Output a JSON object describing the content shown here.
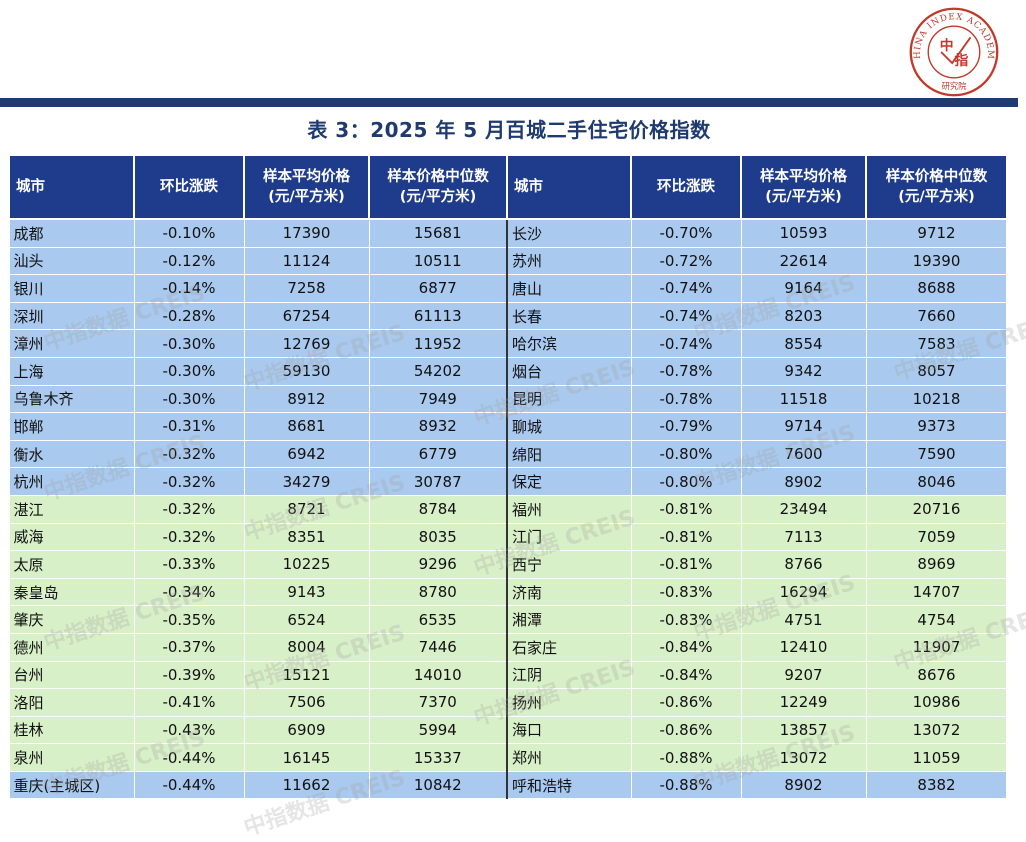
{
  "seal": {
    "ring_text": "CHINA INDEX ACADEMY",
    "center_chars": [
      "中",
      "指"
    ],
    "bottom_text": "研究院",
    "color": "#c0392b"
  },
  "title": "表 3：2025 年 5 月百城二手住宅价格指数",
  "columns": {
    "city": "城市",
    "mom": "环比涨跌",
    "avg_line1": "样本平均价格",
    "avg_line2": "(元/平方米)",
    "median_line1": "样本价格中位数",
    "median_line2": "(元/平方米)"
  },
  "watermark": "中指数据 CREIS",
  "rows": [
    {
      "band": "blue",
      "l": {
        "city": "成都",
        "mom": "-0.10%",
        "avg": "17390",
        "median": "15681"
      },
      "r": {
        "city": "长沙",
        "mom": "-0.70%",
        "avg": "10593",
        "median": "9712"
      }
    },
    {
      "band": "blue",
      "l": {
        "city": "汕头",
        "mom": "-0.12%",
        "avg": "11124",
        "median": "10511"
      },
      "r": {
        "city": "苏州",
        "mom": "-0.72%",
        "avg": "22614",
        "median": "19390"
      }
    },
    {
      "band": "blue",
      "l": {
        "city": "银川",
        "mom": "-0.14%",
        "avg": "7258",
        "median": "6877"
      },
      "r": {
        "city": "唐山",
        "mom": "-0.74%",
        "avg": "9164",
        "median": "8688"
      }
    },
    {
      "band": "blue",
      "l": {
        "city": "深圳",
        "mom": "-0.28%",
        "avg": "67254",
        "median": "61113"
      },
      "r": {
        "city": "长春",
        "mom": "-0.74%",
        "avg": "8203",
        "median": "7660"
      }
    },
    {
      "band": "blue",
      "l": {
        "city": "漳州",
        "mom": "-0.30%",
        "avg": "12769",
        "median": "11952"
      },
      "r": {
        "city": "哈尔滨",
        "mom": "-0.74%",
        "avg": "8554",
        "median": "7583"
      }
    },
    {
      "band": "blue",
      "l": {
        "city": "上海",
        "mom": "-0.30%",
        "avg": "59130",
        "median": "54202"
      },
      "r": {
        "city": "烟台",
        "mom": "-0.78%",
        "avg": "9342",
        "median": "8057"
      }
    },
    {
      "band": "blue",
      "l": {
        "city": "乌鲁木齐",
        "mom": "-0.30%",
        "avg": "8912",
        "median": "7949"
      },
      "r": {
        "city": "昆明",
        "mom": "-0.78%",
        "avg": "11518",
        "median": "10218"
      }
    },
    {
      "band": "blue",
      "l": {
        "city": "邯郸",
        "mom": "-0.31%",
        "avg": "8681",
        "median": "8932"
      },
      "r": {
        "city": "聊城",
        "mom": "-0.79%",
        "avg": "9714",
        "median": "9373"
      }
    },
    {
      "band": "blue",
      "l": {
        "city": "衡水",
        "mom": "-0.32%",
        "avg": "6942",
        "median": "6779"
      },
      "r": {
        "city": "绵阳",
        "mom": "-0.80%",
        "avg": "7600",
        "median": "7590"
      }
    },
    {
      "band": "blue",
      "l": {
        "city": "杭州",
        "mom": "-0.32%",
        "avg": "34279",
        "median": "30787"
      },
      "r": {
        "city": "保定",
        "mom": "-0.80%",
        "avg": "8902",
        "median": "8046"
      }
    },
    {
      "band": "green",
      "l": {
        "city": "湛江",
        "mom": "-0.32%",
        "avg": "8721",
        "median": "8784"
      },
      "r": {
        "city": "福州",
        "mom": "-0.81%",
        "avg": "23494",
        "median": "20716"
      }
    },
    {
      "band": "green",
      "l": {
        "city": "威海",
        "mom": "-0.32%",
        "avg": "8351",
        "median": "8035"
      },
      "r": {
        "city": "江门",
        "mom": "-0.81%",
        "avg": "7113",
        "median": "7059"
      }
    },
    {
      "band": "green",
      "l": {
        "city": "太原",
        "mom": "-0.33%",
        "avg": "10225",
        "median": "9296"
      },
      "r": {
        "city": "西宁",
        "mom": "-0.81%",
        "avg": "8766",
        "median": "8969"
      }
    },
    {
      "band": "green",
      "l": {
        "city": "秦皇岛",
        "mom": "-0.34%",
        "avg": "9143",
        "median": "8780"
      },
      "r": {
        "city": "济南",
        "mom": "-0.83%",
        "avg": "16294",
        "median": "14707"
      }
    },
    {
      "band": "green",
      "l": {
        "city": "肇庆",
        "mom": "-0.35%",
        "avg": "6524",
        "median": "6535"
      },
      "r": {
        "city": "湘潭",
        "mom": "-0.83%",
        "avg": "4751",
        "median": "4754"
      }
    },
    {
      "band": "green",
      "l": {
        "city": "德州",
        "mom": "-0.37%",
        "avg": "8004",
        "median": "7446"
      },
      "r": {
        "city": "石家庄",
        "mom": "-0.84%",
        "avg": "12410",
        "median": "11907"
      }
    },
    {
      "band": "green",
      "l": {
        "city": "台州",
        "mom": "-0.39%",
        "avg": "15121",
        "median": "14010"
      },
      "r": {
        "city": "江阴",
        "mom": "-0.84%",
        "avg": "9207",
        "median": "8676"
      }
    },
    {
      "band": "green",
      "l": {
        "city": "洛阳",
        "mom": "-0.41%",
        "avg": "7506",
        "median": "7370"
      },
      "r": {
        "city": "扬州",
        "mom": "-0.86%",
        "avg": "12249",
        "median": "10986"
      }
    },
    {
      "band": "green",
      "l": {
        "city": "桂林",
        "mom": "-0.43%",
        "avg": "6909",
        "median": "5994"
      },
      "r": {
        "city": "海口",
        "mom": "-0.86%",
        "avg": "13857",
        "median": "13072"
      }
    },
    {
      "band": "green",
      "l": {
        "city": "泉州",
        "mom": "-0.44%",
        "avg": "16145",
        "median": "15337"
      },
      "r": {
        "city": "郑州",
        "mom": "-0.88%",
        "avg": "13072",
        "median": "11059"
      }
    },
    {
      "band": "blue",
      "l": {
        "city": "重庆(主城区)",
        "mom": "-0.44%",
        "avg": "11662",
        "median": "10842"
      },
      "r": {
        "city": "呼和浩特",
        "mom": "-0.88%",
        "avg": "8902",
        "median": "8382"
      }
    }
  ]
}
